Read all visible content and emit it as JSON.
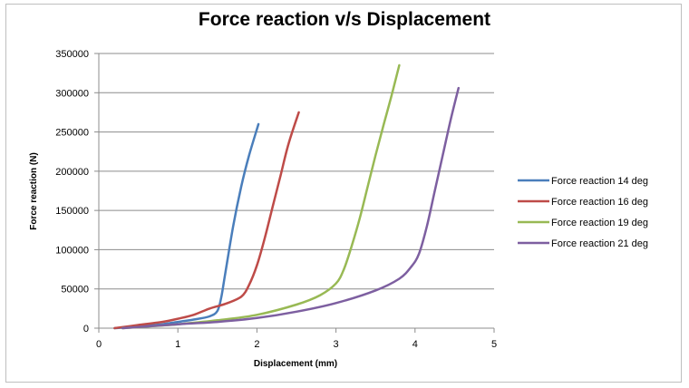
{
  "chart_data": {
    "type": "line",
    "title": "Force reaction v/s Displacement",
    "xlabel": "Displacement (mm)",
    "ylabel": "Force reaction (N)",
    "xlim": [
      0,
      5
    ],
    "ylim": [
      0,
      350000
    ],
    "xticks": [
      "0",
      "1",
      "2",
      "3",
      "4",
      "5"
    ],
    "yticks": [
      "0",
      "50000",
      "100000",
      "150000",
      "200000",
      "250000",
      "300000",
      "350000"
    ],
    "grid": "horizontal",
    "legend_position": "right",
    "series": [
      {
        "name": "Force reaction 14 deg",
        "color": "#4a7ebb",
        "x": [
          0.2,
          0.5,
          0.8,
          1.0,
          1.2,
          1.4,
          1.5,
          1.55,
          1.6,
          1.7,
          1.8,
          1.9,
          2.02
        ],
        "y": [
          0,
          2000,
          5000,
          8000,
          11000,
          15000,
          22000,
          40000,
          70000,
          130000,
          180000,
          220000,
          260000
        ]
      },
      {
        "name": "Force reaction 16 deg",
        "color": "#be4b48",
        "x": [
          0.2,
          0.5,
          0.8,
          1.0,
          1.2,
          1.4,
          1.6,
          1.8,
          1.9,
          2.0,
          2.1,
          2.2,
          2.3,
          2.4,
          2.53
        ],
        "y": [
          0,
          4000,
          8000,
          12000,
          17000,
          25000,
          31000,
          40000,
          55000,
          80000,
          115000,
          155000,
          195000,
          235000,
          275000
        ]
      },
      {
        "name": "Force reaction 19 deg",
        "color": "#98b954",
        "x": [
          0.3,
          0.6,
          1.0,
          1.5,
          2.0,
          2.5,
          2.8,
          3.0,
          3.1,
          3.2,
          3.3,
          3.4,
          3.5,
          3.6,
          3.7,
          3.8
        ],
        "y": [
          0,
          2000,
          5000,
          10000,
          17000,
          30000,
          42000,
          57000,
          75000,
          105000,
          140000,
          180000,
          220000,
          258000,
          295000,
          335000
        ]
      },
      {
        "name": "Force reaction 21 deg",
        "color": "#7d5fa0",
        "x": [
          0.3,
          1.0,
          1.5,
          2.0,
          2.5,
          3.0,
          3.5,
          3.8,
          3.95,
          4.05,
          4.15,
          4.25,
          4.35,
          4.45,
          4.55
        ],
        "y": [
          0,
          5000,
          8000,
          13000,
          21000,
          32000,
          48000,
          63000,
          78000,
          95000,
          130000,
          175000,
          220000,
          265000,
          306000
        ]
      }
    ]
  }
}
